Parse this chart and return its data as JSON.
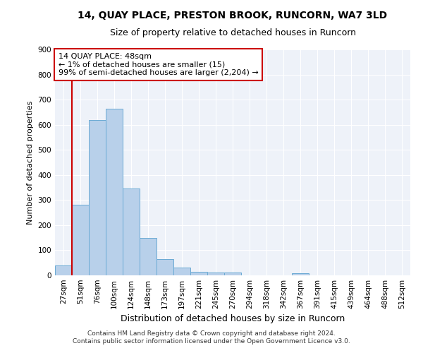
{
  "title1": "14, QUAY PLACE, PRESTON BROOK, RUNCORN, WA7 3LD",
  "title2": "Size of property relative to detached houses in Runcorn",
  "xlabel": "Distribution of detached houses by size in Runcorn",
  "ylabel": "Number of detached properties",
  "footer1": "Contains HM Land Registry data © Crown copyright and database right 2024.",
  "footer2": "Contains public sector information licensed under the Open Government Licence v3.0.",
  "categories": [
    "27sqm",
    "51sqm",
    "76sqm",
    "100sqm",
    "124sqm",
    "148sqm",
    "173sqm",
    "197sqm",
    "221sqm",
    "245sqm",
    "270sqm",
    "294sqm",
    "318sqm",
    "342sqm",
    "367sqm",
    "391sqm",
    "415sqm",
    "439sqm",
    "464sqm",
    "488sqm",
    "512sqm"
  ],
  "values": [
    40,
    280,
    620,
    665,
    345,
    148,
    65,
    30,
    14,
    10,
    10,
    0,
    0,
    0,
    8,
    0,
    0,
    0,
    0,
    0,
    0
  ],
  "bar_color": "#b8d0ea",
  "bar_edge_color": "#6aaad4",
  "background_color": "#eef2f9",
  "red_line_color": "#cc0000",
  "annotation_text": "14 QUAY PLACE: 48sqm\n← 1% of detached houses are smaller (15)\n99% of semi-detached houses are larger (2,204) →",
  "annotation_box_color": "#ffffff",
  "annotation_box_edge": "#cc0000",
  "ylim": [
    0,
    900
  ],
  "yticks": [
    0,
    100,
    200,
    300,
    400,
    500,
    600,
    700,
    800,
    900
  ],
  "title1_fontsize": 10,
  "title2_fontsize": 9,
  "ylabel_fontsize": 8,
  "xlabel_fontsize": 9,
  "tick_fontsize": 7.5,
  "footer_fontsize": 6.5
}
